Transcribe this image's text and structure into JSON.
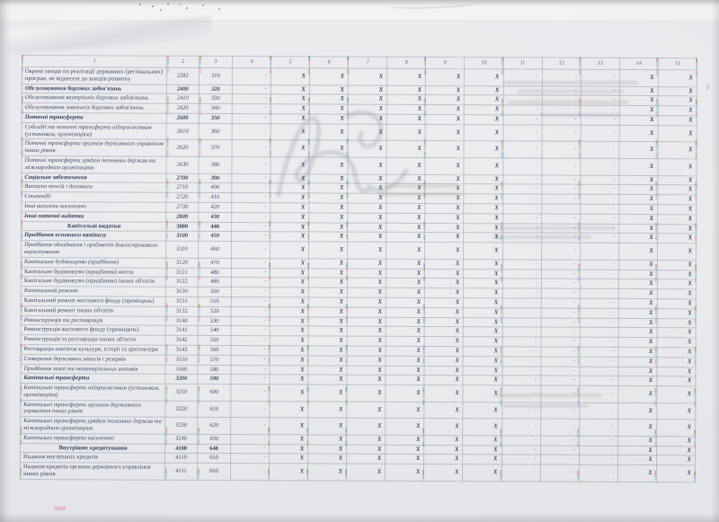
{
  "colors": {
    "ink": "#3e4a68",
    "ink_bold": "#323e5e",
    "paper": "#e7e8eb",
    "border": "#7c8294"
  },
  "table": {
    "column_headers": [
      "1",
      "2",
      "3",
      "4",
      "5",
      "6",
      "7",
      "8",
      "9",
      "10",
      "11",
      "12",
      "13",
      "14",
      "15"
    ],
    "marks_pattern": [
      "-",
      "X",
      "X",
      "X",
      "X",
      "X",
      "X",
      "-",
      "-",
      "-",
      "X",
      "X"
    ],
    "rows": [
      {
        "label": "Окремі заходи по реалізації державних (регіональних) програм, не віднесені до заходів розвитку",
        "kekv": "2282",
        "code": "310",
        "style": "regular"
      },
      {
        "label": "Обслуговування боргових зобов'язань",
        "kekv": "2400",
        "code": "320",
        "style": "bold-italic"
      },
      {
        "label": "Обслуговування внутрішніх боргових зобов'язань",
        "kekv": "2410",
        "code": "330",
        "style": "italic"
      },
      {
        "label": "Обслуговування зовнішніх боргових зобов'язань",
        "kekv": "2420",
        "code": "340",
        "style": "italic"
      },
      {
        "label": "Поточні трансферти",
        "kekv": "2600",
        "code": "350",
        "style": "bold-italic"
      },
      {
        "label": "Субсидії та поточні трансферти підприємствам (установам, організаціям)",
        "kekv": "2610",
        "code": "360",
        "style": "italic"
      },
      {
        "label": "Поточні трансферти органам державного управління інших рівнів",
        "kekv": "2620",
        "code": "370",
        "style": "italic"
      },
      {
        "label": "Поточні трансферти урядам іноземних держав та міжнародним організаціям",
        "kekv": "2630",
        "code": "380",
        "style": "italic"
      },
      {
        "label": "Соціальне забезпечення",
        "kekv": "2700",
        "code": "390",
        "style": "bold-italic"
      },
      {
        "label": "Виплата пенсій і допомоги",
        "kekv": "2710",
        "code": "400",
        "style": "italic"
      },
      {
        "label": "Стипендії",
        "kekv": "2720",
        "code": "410",
        "style": "italic"
      },
      {
        "label": "Інші виплати населенню",
        "kekv": "2730",
        "code": "420",
        "style": "italic"
      },
      {
        "label": "Інші поточні видатки",
        "kekv": "2800",
        "code": "430",
        "style": "bold-italic"
      },
      {
        "label": "Капітальні видатки",
        "kekv": "3000",
        "code": "440",
        "style": "section"
      },
      {
        "label": "Придбання основного капіталу",
        "kekv": "3100",
        "code": "450",
        "style": "bold-italic"
      },
      {
        "label": "Придбання обладнання і предметів довгострокового користування",
        "kekv": "3110",
        "code": "460",
        "style": "italic"
      },
      {
        "label": "Капітальне будівництво (придбання)",
        "kekv": "3120",
        "code": "470",
        "style": "italic"
      },
      {
        "label": "Капітальне будівництво (придбання) житла",
        "kekv": "3121",
        "code": "480",
        "style": "regular"
      },
      {
        "label": "Капітальне будівництво (придбання) інших об'єктів",
        "kekv": "3122",
        "code": "490",
        "style": "regular"
      },
      {
        "label": "Капітальний ремонт",
        "kekv": "3130",
        "code": "500",
        "style": "italic"
      },
      {
        "label": "Капітальний ремонт житлового фонду (приміщень)",
        "kekv": "3131",
        "code": "510",
        "style": "regular"
      },
      {
        "label": "Капітальний ремонт інших об'єктів",
        "kekv": "3132",
        "code": "520",
        "style": "regular"
      },
      {
        "label": "Реконструкція та реставрація",
        "kekv": "3140",
        "code": "530",
        "style": "italic"
      },
      {
        "label": "Реконструкція житлового фонду (приміщень)",
        "kekv": "3141",
        "code": "540",
        "style": "regular"
      },
      {
        "label": "Реконструкція та реставрація інших об'єктів",
        "kekv": "3142",
        "code": "550",
        "style": "regular"
      },
      {
        "label": "Реставрація пам'яток культури, історії та архітектури",
        "kekv": "3143",
        "code": "560",
        "style": "regular"
      },
      {
        "label": "Створення державних запасів і резервів",
        "kekv": "3150",
        "code": "570",
        "style": "italic"
      },
      {
        "label": "Придбання землі та нематеріальних активів",
        "kekv": "3160",
        "code": "580",
        "style": "italic"
      },
      {
        "label": "Капітальні трансферти",
        "kekv": "3200",
        "code": "590",
        "style": "bold-italic"
      },
      {
        "label": "Капітальні трансферти підприємствам (установам, організаціям)",
        "kekv": "3210",
        "code": "600",
        "style": "italic"
      },
      {
        "label": "Капітальні трансферти органам державного управління інших рівнів",
        "kekv": "3220",
        "code": "610",
        "style": "italic"
      },
      {
        "label": "Капітальні трансферти урядам іноземних держав та міжнародним організаціям",
        "kekv": "3230",
        "code": "620",
        "style": "italic"
      },
      {
        "label": "Капітальні трансферти населенню",
        "kekv": "3240",
        "code": "630",
        "style": "italic"
      },
      {
        "label": "Внутрішнє кредитування",
        "kekv": "4100",
        "code": "640",
        "style": "section"
      },
      {
        "label": "Надання внутрішніх кредитів",
        "kekv": "4110",
        "code": "650",
        "style": "regular"
      },
      {
        "label": "Надання кредитів органам державного управління інших рівнів",
        "kekv": "4111",
        "code": "660",
        "style": "regular"
      }
    ]
  }
}
